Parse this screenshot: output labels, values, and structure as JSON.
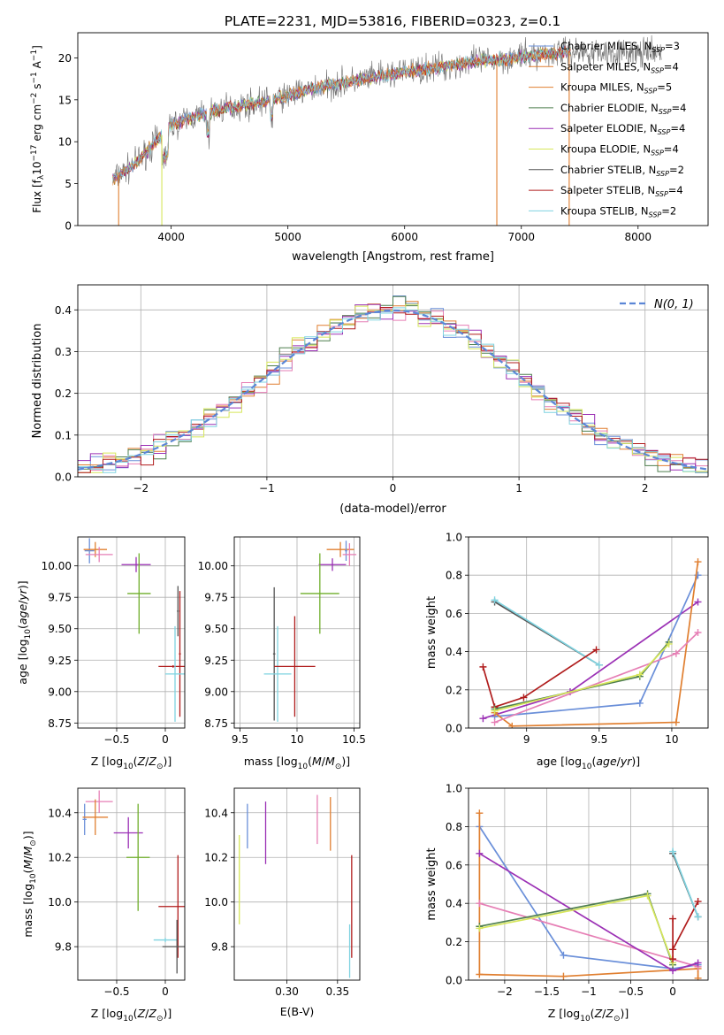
{
  "figure_title": "PLATE=2231, MJD=53816, FIBERID=0323, z=0.1",
  "colors": {
    "Chabrier MILES": "#6a8fd9",
    "Salpeter MILES": "#e07f30",
    "Kroupa MILES": "#e07f30",
    "Chabrier ELODIE": "#4f7f4f",
    "Salpeter ELODIE": "#9b30b5",
    "Kroupa ELODIE": "#d6e65a",
    "Chabrier STELIB": "#555555",
    "Salpeter STELIB": "#b01c1c",
    "Kroupa STELIB": "#7fd3e0",
    "pink": "#e67fb5",
    "olive": "#6fae2a",
    "normal": "#5b86d6"
  },
  "chart_data": [
    {
      "id": "spectrum",
      "type": "line",
      "xlabel": "wavelength [Angstrom, rest frame]",
      "ylabel": "Flux [f",
      "xlim": [
        3200,
        8600
      ],
      "ylim": [
        0,
        23
      ],
      "xticks": [
        4000,
        5000,
        6000,
        7000,
        8000
      ],
      "yticks": [
        0,
        5,
        10,
        15,
        20
      ],
      "grid": false,
      "legend_placement": "right",
      "legend": [
        {
          "label": "Chabrier MILES, N",
          "n": "3"
        },
        {
          "label": "Salpeter MILES, N",
          "n": "4"
        },
        {
          "label": "Kroupa MILES, N",
          "n": "5"
        },
        {
          "label": "Chabrier ELODIE, N",
          "n": "4"
        },
        {
          "label": "Salpeter ELODIE, N",
          "n": "4"
        },
        {
          "label": "Kroupa ELODIE, N",
          "n": "4"
        },
        {
          "label": "Chabrier STELIB, N",
          "n": "2"
        },
        {
          "label": "Salpeter STELIB, N",
          "n": "4"
        },
        {
          "label": "Kroupa STELIB, N",
          "n": "2"
        }
      ],
      "legend_sub": "SSP",
      "continuum_x": [
        3500,
        3600,
        3700,
        3800,
        3900,
        4000,
        4200,
        4400,
        4600,
        4800,
        5000,
        5200,
        5400,
        5600,
        5800,
        6000,
        6200,
        6400,
        6600,
        6800,
        7000,
        7200,
        7400
      ],
      "continuum_y": [
        5.5,
        6.5,
        7.5,
        9,
        10.5,
        12,
        13,
        13.8,
        14.3,
        14.8,
        15.5,
        16.3,
        16.8,
        17.3,
        17.8,
        18.3,
        18.7,
        19.1,
        19.5,
        19.8,
        20.1,
        20.5,
        20.8
      ],
      "data_x_range": [
        3500,
        8200
      ]
    },
    {
      "id": "residuals",
      "type": "line",
      "xlabel": "(data-model)/error",
      "ylabel": "Normed distribution",
      "xlim": [
        -2.5,
        2.5
      ],
      "ylim": [
        0,
        0.46
      ],
      "xticks": [
        -2,
        -1,
        0,
        1,
        2
      ],
      "yticks": [
        0.0,
        0.1,
        0.2,
        0.3,
        0.4
      ],
      "grid": true,
      "legend_placement": "top-right",
      "legend_label": "N(0, 1)",
      "bin_width": 0.1
    },
    {
      "id": "age_vs_Z",
      "type": "scatter",
      "xlabel": "Z [log",
      "ylabel": "age  [log",
      "xlim": [
        -0.9,
        0.2
      ],
      "ylim": [
        8.71,
        10.23
      ],
      "xticks": [
        -0.5,
        0.0
      ],
      "yticks": [
        8.75,
        9.0,
        9.25,
        9.5,
        9.75,
        10.0
      ],
      "grid": true,
      "points": [
        {
          "color": "Chabrier MILES",
          "x": -0.78,
          "y": 10.12,
          "xerr": 0.05,
          "yerr": 0.1
        },
        {
          "color": "Salpeter MILES",
          "x": -0.72,
          "y": 10.13,
          "xerr": 0.12,
          "yerr": 0.06
        },
        {
          "color": "pink",
          "x": -0.68,
          "y": 10.09,
          "xerr": 0.14,
          "yerr": 0.06
        },
        {
          "color": "Salpeter ELODIE",
          "x": -0.3,
          "y": 10.01,
          "xerr": 0.15,
          "yerr": 0.06
        },
        {
          "color": "olive",
          "x": -0.27,
          "y": 9.78,
          "xerr": 0.12,
          "yerr": 0.32
        },
        {
          "color": "Chabrier STELIB",
          "x": 0.13,
          "y": 9.64,
          "xerr": 0.01,
          "yerr": 0.2
        },
        {
          "color": "Salpeter STELIB",
          "x": 0.15,
          "y": 9.3,
          "xerr": 0.01,
          "yerr": 0.5
        },
        {
          "color": "Salpeter STELIB",
          "x": 0.08,
          "y": 9.2,
          "xerr": 0.15,
          "yerr": 0.01
        },
        {
          "color": "Kroupa STELIB",
          "x": 0.1,
          "y": 9.14,
          "xerr": 0.1,
          "yerr": 0.38
        }
      ]
    },
    {
      "id": "age_vs_mass",
      "type": "scatter",
      "xlabel": "mass [log",
      "ylabel": "",
      "xlim": [
        9.45,
        10.55
      ],
      "ylim": [
        8.71,
        10.23
      ],
      "xticks": [
        9.5,
        10.0,
        10.5
      ],
      "yticks": [
        8.75,
        9.0,
        9.25,
        9.5,
        9.75,
        10.0
      ],
      "grid": true,
      "points": [
        {
          "color": "Salpeter MILES",
          "x": 10.38,
          "y": 10.13,
          "xerr": 0.12,
          "yerr": 0.06
        },
        {
          "color": "Chabrier MILES",
          "x": 10.43,
          "y": 10.12,
          "xerr": 0.01,
          "yerr": 0.08
        },
        {
          "color": "pink",
          "x": 10.46,
          "y": 10.09,
          "xerr": 0.06,
          "yerr": 0.09
        },
        {
          "color": "Salpeter ELODIE",
          "x": 10.31,
          "y": 10.01,
          "xerr": 0.12,
          "yerr": 0.05
        },
        {
          "color": "olive",
          "x": 10.2,
          "y": 9.78,
          "xerr": 0.17,
          "yerr": 0.32
        },
        {
          "color": "Chabrier STELIB",
          "x": 9.8,
          "y": 9.3,
          "xerr": 0.01,
          "yerr": 0.53
        },
        {
          "color": "Kroupa STELIB",
          "x": 9.83,
          "y": 9.14,
          "xerr": 0.12,
          "yerr": 0.38
        },
        {
          "color": "Salpeter STELIB",
          "x": 9.98,
          "y": 9.2,
          "xerr": 0.18,
          "yerr": 0.4
        }
      ]
    },
    {
      "id": "weight_vs_age",
      "type": "line",
      "xlabel": "age  [log",
      "ylabel": "mass weight",
      "xlim": [
        8.6,
        10.25
      ],
      "ylim": [
        0,
        1.0
      ],
      "xticks": [
        9.0,
        9.5,
        10.0
      ],
      "yticks": [
        0.0,
        0.2,
        0.4,
        0.6,
        0.8,
        1.0
      ],
      "grid": true,
      "series": [
        {
          "color": "Chabrier STELIB",
          "x": [
            8.78,
            9.5
          ],
          "y": [
            0.66,
            0.33
          ]
        },
        {
          "color": "Kroupa STELIB",
          "x": [
            8.78,
            9.5
          ],
          "y": [
            0.67,
            0.33
          ]
        },
        {
          "color": "Salpeter STELIB",
          "x": [
            8.7,
            8.78,
            8.98,
            9.48
          ],
          "y": [
            0.32,
            0.11,
            0.16,
            0.41
          ]
        },
        {
          "color": "Salpeter ELODIE",
          "x": [
            8.7,
            9.3,
            10.18
          ],
          "y": [
            0.05,
            0.19,
            0.66
          ]
        },
        {
          "color": "Chabrier MILES",
          "x": [
            8.78,
            9.78,
            10.18
          ],
          "y": [
            0.06,
            0.13,
            0.8
          ]
        },
        {
          "color": "Salpeter MILES",
          "x": [
            8.78,
            8.9,
            10.03,
            10.18
          ],
          "y": [
            0.08,
            0.01,
            0.03,
            0.87
          ]
        },
        {
          "color": "pink",
          "x": [
            8.78,
            10.03,
            10.18
          ],
          "y": [
            0.03,
            0.39,
            0.5
          ]
        },
        {
          "color": "Chabrier ELODIE",
          "x": [
            8.78,
            9.78,
            9.98
          ],
          "y": [
            0.1,
            0.27,
            0.45
          ]
        },
        {
          "color": "Kroupa ELODIE",
          "x": [
            8.78,
            9.78,
            9.98
          ],
          "y": [
            0.09,
            0.28,
            0.44
          ]
        }
      ]
    },
    {
      "id": "mass_vs_Z",
      "type": "scatter",
      "xlabel": "Z [log",
      "ylabel": "mass [log",
      "xlim": [
        -0.9,
        0.2
      ],
      "ylim": [
        9.65,
        10.51
      ],
      "xticks": [
        -0.5,
        0.0
      ],
      "yticks": [
        9.8,
        10.0,
        10.2,
        10.4
      ],
      "grid": true,
      "points": [
        {
          "color": "Chabrier MILES",
          "x": -0.83,
          "y": 10.37,
          "xerr": 0.02,
          "yerr": 0.07
        },
        {
          "color": "pink",
          "x": -0.68,
          "y": 10.45,
          "xerr": 0.14,
          "yerr": 0.05
        },
        {
          "color": "Salpeter MILES",
          "x": -0.72,
          "y": 10.38,
          "xerr": 0.13,
          "yerr": 0.08
        },
        {
          "color": "Salpeter ELODIE",
          "x": -0.38,
          "y": 10.31,
          "xerr": 0.15,
          "yerr": 0.07
        },
        {
          "color": "olive",
          "x": -0.28,
          "y": 10.2,
          "xerr": 0.12,
          "yerr": 0.24
        },
        {
          "color": "Salpeter STELIB",
          "x": 0.13,
          "y": 9.98,
          "xerr": 0.2,
          "yerr": 0.23
        },
        {
          "color": "Kroupa STELIB",
          "x": 0.0,
          "y": 9.83,
          "xerr": 0.12,
          "yerr": 0.01
        },
        {
          "color": "Chabrier STELIB",
          "x": 0.12,
          "y": 9.8,
          "xerr": 0.15,
          "yerr": 0.12
        }
      ]
    },
    {
      "id": "mass_vs_EBV",
      "type": "scatter",
      "xlabel": "E(B-V)",
      "ylabel": "",
      "xlim": [
        0.248,
        0.372
      ],
      "ylim": [
        9.65,
        10.51
      ],
      "xticks": [
        0.3,
        0.35
      ],
      "xticklabels": [
        "0.30",
        "0.35"
      ],
      "yticks": [
        9.8,
        10.0,
        10.2,
        10.4
      ],
      "grid": true,
      "points": [
        {
          "color": "Kroupa ELODIE",
          "x": 0.253,
          "y": 10.1,
          "xerr": 0,
          "yerr": 0.2
        },
        {
          "color": "Chabrier MILES",
          "x": 0.261,
          "y": 10.34,
          "xerr": 0,
          "yerr": 0.1
        },
        {
          "color": "Salpeter ELODIE",
          "x": 0.279,
          "y": 10.31,
          "xerr": 0,
          "yerr": 0.14
        },
        {
          "color": "pink",
          "x": 0.33,
          "y": 10.37,
          "xerr": 0,
          "yerr": 0.11
        },
        {
          "color": "Salpeter MILES",
          "x": 0.343,
          "y": 10.35,
          "xerr": 0,
          "yerr": 0.12
        },
        {
          "color": "Salpeter STELIB",
          "x": 0.364,
          "y": 9.98,
          "xerr": 0,
          "yerr": 0.23
        },
        {
          "color": "Kroupa STELIB",
          "x": 0.362,
          "y": 9.78,
          "xerr": 0,
          "yerr": 0.12
        }
      ]
    },
    {
      "id": "weight_vs_Z",
      "type": "line",
      "xlabel": "Z [log",
      "ylabel": "mass weight",
      "xlim": [
        -2.43,
        0.42
      ],
      "ylim": [
        0,
        1.0
      ],
      "xticks": [
        -2.0,
        -1.5,
        -1.0,
        -0.5,
        0.0
      ],
      "yticks": [
        0.0,
        0.2,
        0.4,
        0.6,
        0.8,
        1.0
      ],
      "grid": true,
      "series": [
        {
          "color": "Chabrier MILES",
          "x": [
            -2.3,
            -1.3,
            0.0,
            0.3
          ],
          "y": [
            0.8,
            0.13,
            0.06,
            0.08
          ]
        },
        {
          "color": "Salpeter MILES",
          "x": [
            -2.3,
            -2.3,
            -1.3,
            0.3,
            0.3
          ],
          "y": [
            0.87,
            0.03,
            0.02,
            0.06,
            0.01
          ]
        },
        {
          "color": "pink",
          "x": [
            -2.3,
            0.3
          ],
          "y": [
            0.4,
            0.07
          ]
        },
        {
          "color": "Salpeter ELODIE",
          "x": [
            -2.3,
            0.0,
            0.3
          ],
          "y": [
            0.66,
            0.05,
            0.09
          ]
        },
        {
          "color": "Chabrier ELODIE",
          "x": [
            -2.3,
            -0.3,
            0.0
          ],
          "y": [
            0.28,
            0.45,
            0.08
          ]
        },
        {
          "color": "Kroupa ELODIE",
          "x": [
            -2.3,
            -0.3,
            0.0
          ],
          "y": [
            0.27,
            0.44,
            0.09
          ]
        },
        {
          "color": "Salpeter STELIB",
          "x": [
            0.0,
            0.0,
            0.0,
            0.3
          ],
          "y": [
            0.32,
            0.11,
            0.16,
            0.41
          ]
        },
        {
          "color": "Chabrier STELIB",
          "x": [
            0.0,
            0.3
          ],
          "y": [
            0.66,
            0.33
          ]
        },
        {
          "color": "Kroupa STELIB",
          "x": [
            0.0,
            0.3
          ],
          "y": [
            0.67,
            0.33
          ]
        }
      ]
    }
  ]
}
